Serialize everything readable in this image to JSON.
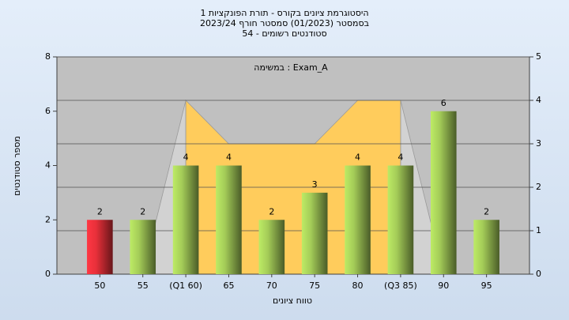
{
  "chart_data": {
    "type": "bar",
    "title": [
      "היסטוגרמת ציונים בקורס - תורת הפונקציות 1",
      "בסמסטר  (01/2023)  סמסטר חורף 2023/24",
      "סטודנטים רשומים - 54"
    ],
    "annotation": "במשימה : Exam_A",
    "xlabel": "טווח ציונים",
    "ylabel": "מספר סטודנטים",
    "categories": [
      "50",
      "55",
      "(Q1 60)",
      "65",
      "70",
      "75",
      "80",
      "(Q3 85)",
      "90",
      "95"
    ],
    "values": [
      2,
      2,
      4,
      4,
      2,
      3,
      4,
      4,
      6,
      2
    ],
    "colors": [
      "#e8303a",
      "#a4cc58",
      "#a4cc58",
      "#a4cc58",
      "#a4cc58",
      "#a4cc58",
      "#a4cc58",
      "#a4cc58",
      "#a4cc58",
      "#a4cc58"
    ],
    "series": [
      {
        "type": "area",
        "axis": "y2",
        "color": "#d2d2d2",
        "values": [
          null,
          0,
          4,
          null,
          null,
          null,
          null,
          4,
          0,
          null
        ]
      },
      {
        "type": "area",
        "axis": "y2",
        "color": "#ffcc5c",
        "values": [
          null,
          null,
          4,
          3,
          3,
          3,
          4,
          4,
          null,
          null
        ]
      }
    ],
    "ylim": [
      0,
      8
    ],
    "yticks": [
      0,
      2,
      4,
      6,
      8
    ],
    "y2lim": [
      0,
      5
    ],
    "y2ticks": [
      0,
      1,
      2,
      3,
      4,
      5
    ],
    "grid": "y2"
  }
}
